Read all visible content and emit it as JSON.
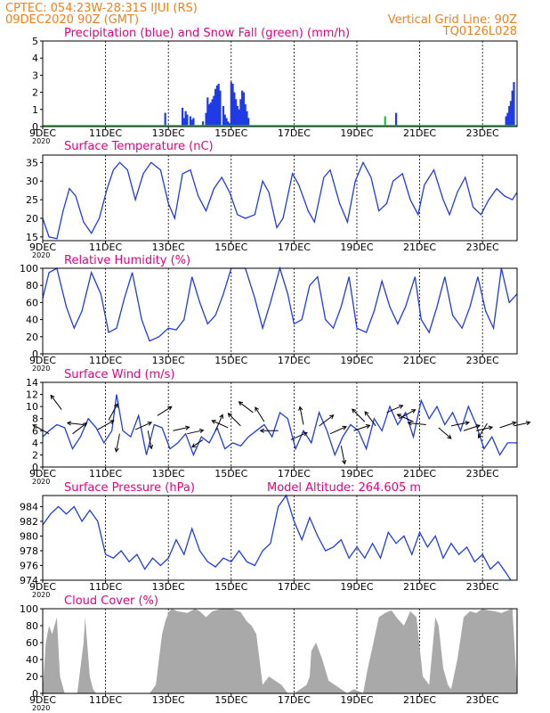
{
  "header": {
    "line1_left": "CPTEC:   054:23W-28:31S   IJUI (RS)",
    "line2_left": "09DEC2020 90Z (GMT)",
    "line2_right": "Vertical Grid Line: 90Z",
    "line3_right": "TQ0126L028"
  },
  "colors": {
    "header": "#f07f1e",
    "title": "#e6007e",
    "precip": "#1f3be6",
    "snow": "#1fbf3a",
    "line": "#1f3be6",
    "cloud": "#a9a9a9",
    "wind_arrow": "#000000"
  },
  "x_axis": {
    "labels": [
      "9DEC",
      "11DEC",
      "13DEC",
      "15DEC",
      "17DEC",
      "19DEC",
      "21DEC",
      "23DEC"
    ],
    "label_days": [
      9,
      11,
      13,
      15,
      17,
      19,
      21,
      23
    ],
    "year_label": "2020",
    "start_day": 9,
    "end_day": 24.1
  },
  "panels": {
    "precip": {
      "title": "Precipitation (blue) and Snow Fall (green) (mm/h)"
    },
    "temp": {
      "title": "Surface Temperature (nC)"
    },
    "rh": {
      "title": "Relative Humidity (%)"
    },
    "wind": {
      "title": "Surface Wind (m/s)"
    },
    "pressure": {
      "title": "Surface Pressure (hPa)",
      "extra": "Model Altitude: 264.605 m"
    },
    "cloud": {
      "title": "Cloud Cover (%)"
    }
  },
  "chart_data": [
    {
      "type": "bar",
      "title": "Precipitation (blue) and Snow Fall (green) (mm/h)",
      "ylim": [
        0,
        5
      ],
      "yticks": [
        0,
        1,
        2,
        3,
        4,
        5
      ],
      "series": [
        {
          "name": "Precipitation",
          "x": [
            12.9,
            13.45,
            13.5,
            13.55,
            13.6,
            13.7,
            13.75,
            13.8,
            14.1,
            14.2,
            14.25,
            14.3,
            14.35,
            14.4,
            14.45,
            14.5,
            14.55,
            14.6,
            14.65,
            14.75,
            14.8,
            14.85,
            14.9,
            14.95,
            15.0,
            15.05,
            15.1,
            15.15,
            15.2,
            15.25,
            15.3,
            15.35,
            15.4,
            15.45,
            15.5,
            15.55,
            20.25,
            23.75,
            23.8,
            23.85,
            23.9,
            23.95,
            24.0
          ],
          "values": [
            0.8,
            1.1,
            0.5,
            0.9,
            0.7,
            0.6,
            0.4,
            0.5,
            0.3,
            0.8,
            1.7,
            1.3,
            1.4,
            1.6,
            1.8,
            2.2,
            2.4,
            2.5,
            2.1,
            1.2,
            0.7,
            0.5,
            0.3,
            0.2,
            2.6,
            2.5,
            2.0,
            1.6,
            1.2,
            1.0,
            1.6,
            2.1,
            2.0,
            1.3,
            0.9,
            0.5,
            0.8,
            0.6,
            0.8,
            1.2,
            1.5,
            2.1,
            2.6
          ]
        },
        {
          "name": "Snow Fall",
          "x": [
            19.9
          ],
          "values": [
            0.6
          ]
        }
      ]
    },
    {
      "type": "line",
      "title": "Surface Temperature (nC)",
      "ylim": [
        14,
        37
      ],
      "yticks": [
        15,
        20,
        25,
        30,
        35
      ],
      "x": [
        9.0,
        9.2,
        9.45,
        9.65,
        9.85,
        10.05,
        10.3,
        10.55,
        10.8,
        11.05,
        11.25,
        11.45,
        11.7,
        11.95,
        12.2,
        12.45,
        12.75,
        13.0,
        13.2,
        13.45,
        13.7,
        13.95,
        14.2,
        14.45,
        14.7,
        14.95,
        15.2,
        15.45,
        15.75,
        16.0,
        16.2,
        16.45,
        16.65,
        16.95,
        17.15,
        17.45,
        17.65,
        17.95,
        18.15,
        18.45,
        18.7,
        18.95,
        19.2,
        19.45,
        19.7,
        19.95,
        20.15,
        20.45,
        20.7,
        20.95,
        21.15,
        21.45,
        21.75,
        21.95,
        22.2,
        22.45,
        22.7,
        22.95,
        23.2,
        23.45,
        23.7,
        23.95,
        24.1
      ],
      "values": [
        20,
        15,
        14.5,
        22,
        28,
        26,
        19,
        16,
        20,
        28,
        33,
        35,
        33,
        25,
        32,
        35,
        33,
        24,
        20,
        32,
        33,
        26,
        22,
        28,
        31,
        27,
        21,
        20,
        21,
        30,
        27,
        17.5,
        20,
        32,
        29,
        22,
        19,
        31,
        33,
        24,
        19,
        30,
        35,
        31,
        22,
        24,
        30,
        32,
        25,
        21,
        29,
        33,
        25,
        21,
        27,
        31,
        23,
        21,
        25,
        28,
        26,
        25,
        27
      ]
    },
    {
      "type": "line",
      "title": "Relative Humidity (%)",
      "ylim": [
        0,
        100
      ],
      "yticks": [
        0,
        20,
        40,
        60,
        80,
        100
      ],
      "x": [
        9.0,
        9.2,
        9.45,
        9.75,
        10.0,
        10.25,
        10.55,
        10.85,
        11.1,
        11.35,
        11.6,
        11.85,
        12.15,
        12.4,
        12.7,
        13.0,
        13.25,
        13.5,
        13.75,
        14.0,
        14.25,
        14.5,
        14.75,
        15.0,
        15.2,
        15.45,
        15.75,
        16.0,
        16.25,
        16.55,
        16.8,
        17.0,
        17.25,
        17.5,
        17.75,
        18.0,
        18.25,
        18.5,
        18.75,
        19.0,
        19.3,
        19.55,
        19.8,
        20.05,
        20.3,
        20.55,
        20.85,
        21.05,
        21.3,
        21.55,
        21.8,
        22.05,
        22.35,
        22.6,
        22.85,
        23.1,
        23.35,
        23.6,
        23.85,
        24.1
      ],
      "values": [
        65,
        95,
        100,
        55,
        30,
        50,
        95,
        70,
        25,
        30,
        65,
        95,
        40,
        15,
        20,
        30,
        28,
        40,
        90,
        60,
        35,
        45,
        70,
        100,
        100,
        100,
        65,
        30,
        60,
        100,
        70,
        35,
        40,
        80,
        90,
        40,
        30,
        55,
        90,
        30,
        25,
        50,
        85,
        55,
        35,
        55,
        90,
        40,
        25,
        55,
        90,
        45,
        30,
        55,
        90,
        50,
        30,
        100,
        60,
        70
      ]
    },
    {
      "type": "line",
      "title": "Surface Wind (m/s)",
      "ylim": [
        0,
        14
      ],
      "yticks": [
        0,
        2,
        4,
        6,
        8,
        10,
        12,
        14
      ],
      "x": [
        9.0,
        9.2,
        9.45,
        9.7,
        9.95,
        10.2,
        10.45,
        10.7,
        10.95,
        11.2,
        11.35,
        11.55,
        11.8,
        12.05,
        12.3,
        12.55,
        12.8,
        13.05,
        13.3,
        13.55,
        13.8,
        14.05,
        14.3,
        14.55,
        14.8,
        15.05,
        15.3,
        15.55,
        15.8,
        16.05,
        16.3,
        16.55,
        16.8,
        17.05,
        17.3,
        17.55,
        17.8,
        18.05,
        18.3,
        18.55,
        18.8,
        19.05,
        19.3,
        19.55,
        19.8,
        20.05,
        20.3,
        20.55,
        20.8,
        21.05,
        21.3,
        21.55,
        21.8,
        22.05,
        22.3,
        22.55,
        22.8,
        23.05,
        23.3,
        23.55,
        23.8,
        24.1
      ],
      "values": [
        5,
        6,
        7,
        6.5,
        3,
        5,
        8,
        6.5,
        4,
        6,
        12,
        6,
        5,
        8.5,
        2,
        7,
        6.5,
        3,
        4,
        5.5,
        2,
        5,
        4,
        6.5,
        3,
        4,
        3.5,
        5,
        6,
        7,
        5,
        9,
        8,
        3,
        6,
        4,
        9,
        6,
        2,
        5,
        7,
        6,
        3,
        8,
        6,
        10,
        7,
        9,
        5,
        11,
        8,
        10,
        7,
        9,
        6,
        10,
        7,
        3,
        5,
        2,
        4,
        4
      ]
    },
    {
      "type": "line",
      "title": "Surface Pressure (hPa)",
      "ylim": [
        974,
        985.5
      ],
      "yticks": [
        974,
        976,
        978,
        980,
        982,
        984
      ],
      "x": [
        9.0,
        9.25,
        9.5,
        9.75,
        10.0,
        10.25,
        10.5,
        10.75,
        11.0,
        11.25,
        11.5,
        11.75,
        12.0,
        12.25,
        12.5,
        12.75,
        13.0,
        13.25,
        13.5,
        13.75,
        14.0,
        14.25,
        14.5,
        14.75,
        15.0,
        15.25,
        15.5,
        15.75,
        16.0,
        16.25,
        16.5,
        16.75,
        17.0,
        17.25,
        17.5,
        17.75,
        18.0,
        18.25,
        18.5,
        18.75,
        19.0,
        19.25,
        19.5,
        19.75,
        20.0,
        20.25,
        20.5,
        20.75,
        21.0,
        21.25,
        21.5,
        21.75,
        22.0,
        22.25,
        22.5,
        22.75,
        23.0,
        23.25,
        23.5,
        23.75,
        23.9
      ],
      "values": [
        981.5,
        983,
        984,
        983,
        984,
        982,
        983.5,
        982,
        977.5,
        977,
        978,
        976.5,
        977.5,
        975.5,
        977,
        976,
        977,
        979.5,
        977.5,
        981,
        978,
        976.5,
        975.8,
        977,
        976.5,
        978,
        976.5,
        976,
        978,
        979,
        984,
        986,
        982,
        979.5,
        982.5,
        980,
        978,
        978.5,
        979.5,
        977,
        978.5,
        977,
        979,
        977,
        980.5,
        979,
        980,
        977.5,
        980.5,
        978.5,
        980,
        977,
        979,
        977.5,
        978.5,
        976.5,
        977.5,
        975.5,
        976.5,
        975,
        974
      ]
    },
    {
      "type": "area",
      "title": "Cloud Cover (%)",
      "ylim": [
        0,
        100
      ],
      "yticks": [
        0,
        20,
        40,
        60,
        80,
        100
      ],
      "x": [
        9.0,
        9.1,
        9.2,
        9.3,
        9.45,
        9.55,
        9.7,
        9.9,
        10.1,
        10.3,
        10.35,
        10.5,
        10.6,
        10.7,
        10.9,
        11.2,
        11.5,
        11.8,
        12.1,
        12.4,
        12.6,
        12.7,
        12.8,
        12.9,
        13.0,
        13.1,
        13.3,
        13.6,
        13.85,
        14.0,
        14.2,
        14.4,
        14.7,
        15.0,
        15.3,
        15.5,
        15.65,
        15.8,
        15.9,
        16.0,
        16.2,
        16.4,
        16.6,
        16.8,
        17.0,
        17.2,
        17.4,
        17.5,
        17.55,
        17.7,
        17.9,
        18.1,
        18.3,
        18.5,
        18.7,
        18.9,
        19.1,
        19.2,
        19.35,
        19.5,
        19.7,
        19.9,
        20.1,
        20.3,
        20.5,
        20.7,
        20.9,
        21.1,
        21.3,
        21.4,
        21.5,
        21.6,
        21.75,
        21.9,
        22.0,
        22.2,
        22.4,
        22.6,
        22.8,
        23.0,
        23.2,
        23.4,
        23.6,
        23.8,
        23.95,
        24.1
      ],
      "values": [
        5,
        60,
        80,
        70,
        90,
        20,
        0,
        0,
        0,
        60,
        90,
        20,
        5,
        0,
        0,
        0,
        0,
        0,
        0,
        0,
        10,
        40,
        70,
        85,
        95,
        100,
        97,
        95,
        100,
        97,
        90,
        97,
        100,
        100,
        96,
        85,
        80,
        70,
        40,
        10,
        20,
        15,
        10,
        0,
        0,
        5,
        10,
        20,
        50,
        60,
        40,
        15,
        10,
        5,
        0,
        5,
        2,
        0,
        30,
        55,
        90,
        95,
        98,
        88,
        80,
        97,
        90,
        20,
        10,
        50,
        90,
        80,
        30,
        10,
        5,
        40,
        90,
        97,
        95,
        100,
        98,
        97,
        95,
        98,
        100,
        5
      ]
    }
  ],
  "wind_arrows": [
    {
      "day": 9.2,
      "speed": 5.5,
      "u": -0.9,
      "v": 0.5
    },
    {
      "day": 9.6,
      "speed": 9.5,
      "u": -0.6,
      "v": 0.8
    },
    {
      "day": 9.95,
      "speed": 5.5,
      "u": 0.8,
      "v": 0.6
    },
    {
      "day": 10.3,
      "speed": 7,
      "u": -0.9,
      "v": 0.1
    },
    {
      "day": 10.75,
      "speed": 6.2,
      "u": 0.9,
      "v": 0.5
    },
    {
      "day": 11.1,
      "speed": 7.8,
      "u": 0.5,
      "v": 0.9
    },
    {
      "day": 11.45,
      "speed": 5.5,
      "u": -0.2,
      "v": -1.0
    },
    {
      "day": 11.95,
      "speed": 6.2,
      "u": 0.9,
      "v": 0.4
    },
    {
      "day": 12.35,
      "speed": 6,
      "u": 0.2,
      "v": -1.0
    },
    {
      "day": 12.65,
      "speed": 8.5,
      "u": 0.8,
      "v": 0.5
    },
    {
      "day": 13.15,
      "speed": 6,
      "u": 0.9,
      "v": 0.2
    },
    {
      "day": 13.6,
      "speed": 5.5,
      "u": 0.9,
      "v": 0.2
    },
    {
      "day": 14.1,
      "speed": 4.5,
      "u": -0.6,
      "v": -0.4
    },
    {
      "day": 14.5,
      "speed": 6,
      "u": 0.4,
      "v": 0.9
    },
    {
      "day": 14.9,
      "speed": 6.5,
      "u": -0.9,
      "v": 0.4
    },
    {
      "day": 15.3,
      "speed": 6.8,
      "u": -0.7,
      "v": 0.7
    },
    {
      "day": 15.7,
      "speed": 9,
      "u": -0.8,
      "v": 0.6
    },
    {
      "day": 16.05,
      "speed": 7.5,
      "u": -0.5,
      "v": 0.8
    },
    {
      "day": 16.5,
      "speed": 6,
      "u": -1.0,
      "v": 0.0
    },
    {
      "day": 16.9,
      "speed": 4.5,
      "u": 0.9,
      "v": 0.4
    },
    {
      "day": 17.3,
      "speed": 7,
      "u": -0.2,
      "v": 1.0
    },
    {
      "day": 17.8,
      "speed": 6.8,
      "u": 0.8,
      "v": 0.6
    },
    {
      "day": 18.15,
      "speed": 5.5,
      "u": 0.9,
      "v": 0.4
    },
    {
      "day": 18.5,
      "speed": 3.5,
      "u": 0.2,
      "v": -1.0
    },
    {
      "day": 18.9,
      "speed": 6,
      "u": 0.9,
      "v": 0.3
    },
    {
      "day": 19.25,
      "speed": 7.5,
      "u": -0.7,
      "v": 0.7
    },
    {
      "day": 19.6,
      "speed": 6.8,
      "u": -0.6,
      "v": 0.8
    },
    {
      "day": 19.95,
      "speed": 9,
      "u": 0.9,
      "v": 0.4
    },
    {
      "day": 20.35,
      "speed": 8,
      "u": 0.9,
      "v": 0.5
    },
    {
      "day": 20.8,
      "speed": 7.5,
      "u": -0.9,
      "v": 0.4
    },
    {
      "day": 21.2,
      "speed": 7,
      "u": -1.0,
      "v": 0.1
    },
    {
      "day": 21.6,
      "speed": 6.5,
      "u": 0.7,
      "v": -0.6
    },
    {
      "day": 22.0,
      "speed": 6.8,
      "u": 1.0,
      "v": 0.2
    },
    {
      "day": 22.4,
      "speed": 6,
      "u": 0.9,
      "v": 0.3
    },
    {
      "day": 22.8,
      "speed": 6,
      "u": 0.9,
      "v": 0.2
    },
    {
      "day": 23.15,
      "speed": 7.2,
      "u": -0.5,
      "v": -0.8
    },
    {
      "day": 23.55,
      "speed": 6.5,
      "u": 0.9,
      "v": 0.3
    },
    {
      "day": 24.0,
      "speed": 6.8,
      "u": 0.9,
      "v": 0.2
    }
  ]
}
